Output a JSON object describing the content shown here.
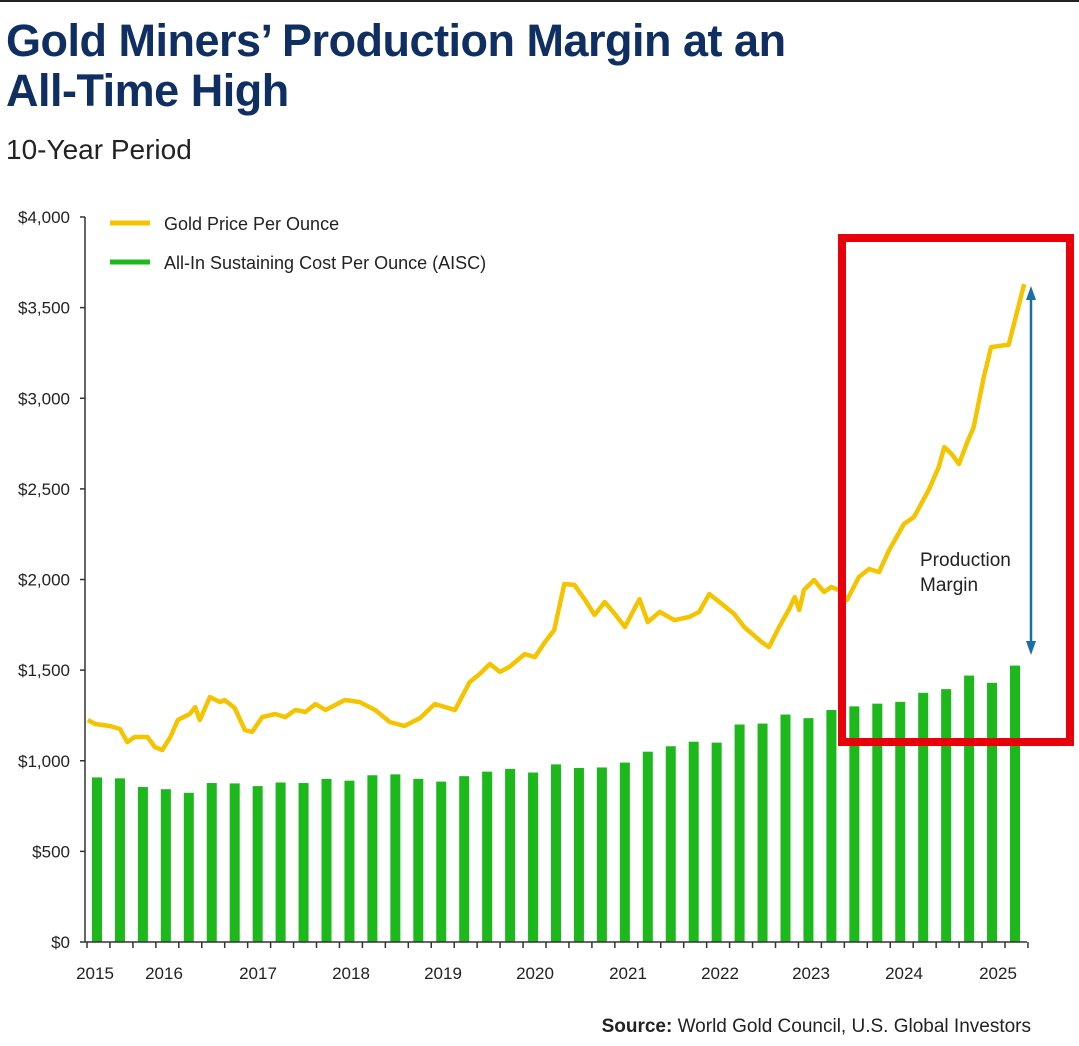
{
  "header": {
    "title_line1": "Gold Miners’ Production Margin at an",
    "title_line2": "All-Time High",
    "subtitle": "10-Year Period"
  },
  "source": {
    "label": "Source:",
    "text": "World Gold Council, U.S. Global Investors"
  },
  "colors": {
    "gold": "#f5c400",
    "aisc": "#1cb81c",
    "highlight": "#e8000b",
    "arrow": "#1a6fa8",
    "title": "#0f2f63"
  },
  "chart_data": {
    "type": "bar+line",
    "title": "Gold Miners’ Production Margin at an All-Time High",
    "subtitle": "10-Year Period",
    "ylim": [
      0,
      4000
    ],
    "y_ticks": [
      0,
      500,
      1000,
      1500,
      2000,
      2500,
      3000,
      3500,
      4000
    ],
    "y_tick_labels": [
      "$0",
      "$500",
      "$1,000",
      "$1,500",
      "$2,000",
      "$2,500",
      "$3,000",
      "$3,500",
      "$4,000"
    ],
    "x_tick_labels": [
      "2015",
      "2016",
      "2017",
      "2018",
      "2019",
      "2020",
      "2021",
      "2022",
      "2023",
      "2024",
      "2025"
    ],
    "legend": [
      "Gold Price Per Ounce",
      "All-In Sustaining Cost Per Ounce (AISC)"
    ],
    "legend_placement": "top-left",
    "series": [
      {
        "name": "All-In Sustaining Cost Per Ounce (AISC)",
        "type": "bar",
        "x_start": 2015.0,
        "x_step": 0.25,
        "values": [
          908,
          903,
          855,
          843,
          823,
          877,
          875,
          860,
          880,
          877,
          900,
          890,
          920,
          925,
          900,
          885,
          915,
          940,
          955,
          935,
          980,
          960,
          963,
          990,
          1050,
          1080,
          1105,
          1100,
          1200,
          1205,
          1255,
          1235,
          1280,
          1300,
          1315,
          1325,
          1375,
          1395,
          1470,
          1430,
          1525
        ]
      },
      {
        "name": "Gold Price Per Ounce",
        "type": "line",
        "x": [
          2014.9,
          2014.98,
          2015.14,
          2015.25,
          2015.33,
          2015.41,
          2015.55,
          2015.63,
          2015.71,
          2015.8,
          2015.88,
          2016.01,
          2016.07,
          2016.12,
          2016.23,
          2016.34,
          2016.39,
          2016.5,
          2016.61,
          2016.69,
          2016.8,
          2016.94,
          2017.05,
          2017.16,
          2017.27,
          2017.38,
          2017.49,
          2017.7,
          2017.86,
          2018.03,
          2018.19,
          2018.35,
          2018.52,
          2018.68,
          2018.9,
          2019.06,
          2019.17,
          2019.28,
          2019.39,
          2019.49,
          2019.66,
          2019.77,
          2019.88,
          2019.98,
          2020.09,
          2020.2,
          2020.31,
          2020.42,
          2020.53,
          2020.64,
          2020.75,
          2020.91,
          2021.0,
          2021.13,
          2021.29,
          2021.45,
          2021.56,
          2021.67,
          2021.78,
          2021.94,
          2022.05,
          2022.24,
          2022.32,
          2022.43,
          2022.54,
          2022.6,
          2022.65,
          2022.7,
          2022.81,
          2022.92,
          2023.0,
          2023.08,
          2023.17,
          2023.3,
          2023.41,
          2023.52,
          2023.63,
          2023.79,
          2023.9,
          2024.06,
          2024.17,
          2024.23,
          2024.31,
          2024.39,
          2024.48,
          2024.55,
          2024.66,
          2024.74,
          2024.9,
          2024.93,
          2025.1
        ],
        "values": [
          1225,
          1203,
          1192,
          1175,
          1103,
          1131,
          1131,
          1076,
          1059,
          1131,
          1225,
          1258,
          1296,
          1225,
          1352,
          1324,
          1335,
          1291,
          1170,
          1159,
          1241,
          1258,
          1241,
          1280,
          1269,
          1313,
          1280,
          1335,
          1324,
          1280,
          1214,
          1192,
          1236,
          1313,
          1280,
          1434,
          1479,
          1534,
          1490,
          1517,
          1589,
          1572,
          1655,
          1721,
          1975,
          1970,
          1892,
          1804,
          1876,
          1810,
          1738,
          1892,
          1765,
          1821,
          1776,
          1793,
          1821,
          1920,
          1876,
          1810,
          1738,
          1655,
          1627,
          1738,
          1837,
          1903,
          1832,
          1942,
          1997,
          1931,
          1959,
          1942,
          1887,
          2014,
          2058,
          2041,
          2163,
          2306,
          2345,
          2494,
          2621,
          2731,
          2692,
          2637,
          2758,
          2841,
          3117,
          3282,
          3294,
          3294,
          3630
        ]
      }
    ],
    "annotations": {
      "highlight_box": "2023.5–2025 region",
      "arrow_label": "Production Margin"
    }
  }
}
